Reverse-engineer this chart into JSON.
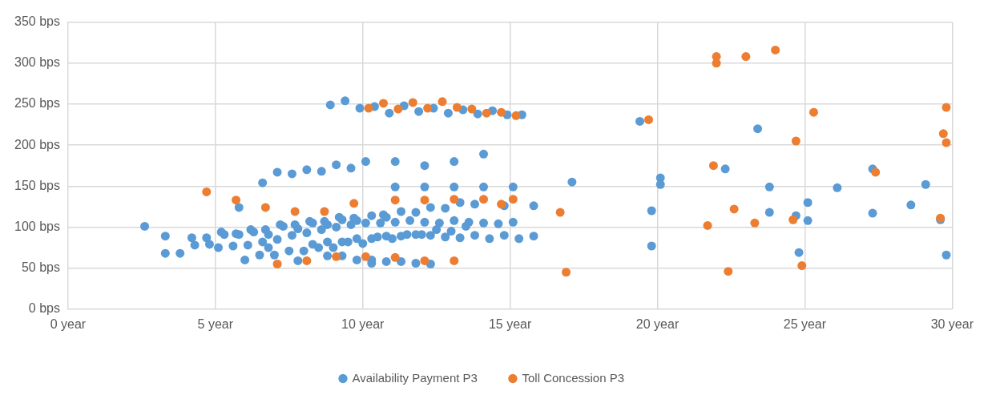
{
  "chart_data": {
    "type": "scatter",
    "marker": "circle",
    "grid": true,
    "legend": "bottom",
    "xlim": [
      0,
      30
    ],
    "xticks": [
      {
        "value": 0,
        "label": "0 year"
      },
      {
        "value": 5,
        "label": "5 year"
      },
      {
        "value": 10,
        "label": "10 year"
      },
      {
        "value": 15,
        "label": "15 year"
      },
      {
        "value": 20,
        "label": "20 year"
      },
      {
        "value": 25,
        "label": "25 year"
      },
      {
        "value": 30,
        "label": "30 year"
      }
    ],
    "ylim": [
      0,
      350
    ],
    "yticks": [
      {
        "value": 0,
        "label": "0 bps"
      },
      {
        "value": 50,
        "label": "50 bps"
      },
      {
        "value": 100,
        "label": "100 bps"
      },
      {
        "value": 150,
        "label": "150 bps"
      },
      {
        "value": 200,
        "label": "200 bps"
      },
      {
        "value": 250,
        "label": "250 bps"
      },
      {
        "value": 300,
        "label": "300 bps"
      },
      {
        "value": 350,
        "label": "350 bps"
      }
    ],
    "series": [
      {
        "name": "Availability Payment P3",
        "color": "#5b9bd5",
        "x": [
          8.9,
          9.4,
          9.9,
          6.6,
          7.1,
          7.6,
          8.1,
          8.6,
          9.1,
          9.6,
          10.1,
          5.8,
          2.6,
          3.3,
          3.3,
          3.8,
          4.2,
          4.3,
          4.7,
          4.8,
          5.1,
          5.2,
          5.3,
          5.6,
          5.7,
          5.8,
          6.0,
          6.1,
          6.2,
          6.3,
          6.5,
          6.6,
          6.7,
          6.8,
          6.8,
          7.0,
          7.1,
          7.2,
          7.3,
          7.5,
          7.6,
          7.7,
          7.8,
          7.8,
          8.0,
          8.1,
          8.2,
          8.3,
          8.3,
          8.5,
          8.6,
          8.7,
          8.8,
          8.8,
          8.8,
          9.0,
          9.1,
          9.2,
          9.3,
          9.3,
          9.3,
          9.5,
          9.6,
          9.7,
          9.8,
          9.8,
          9.8,
          10.1,
          10.3,
          10.3,
          10.3,
          10.3,
          10.4,
          10.9,
          11.4,
          11.9,
          12.4,
          12.9,
          13.4,
          13.9,
          14.4,
          14.9,
          15.4,
          11.1,
          12.1,
          13.1,
          14.1,
          11.1,
          12.1,
          13.1,
          14.1,
          15.1,
          17.1,
          13.3,
          13.8,
          14.8,
          15.8,
          12.3,
          12.8,
          11.3,
          11.8,
          10.7,
          10.8,
          10.6,
          11.1,
          11.6,
          12.1,
          12.6,
          13.1,
          13.5,
          13.6,
          14.1,
          14.6,
          15.1,
          12.5,
          13.0,
          10.0,
          10.5,
          10.8,
          11.0,
          11.3,
          11.5,
          11.8,
          12.0,
          12.3,
          12.8,
          13.3,
          13.8,
          14.3,
          14.8,
          15.3,
          15.8,
          10.8,
          11.3,
          11.8,
          12.3,
          19.4,
          23.4,
          20.1,
          20.1,
          19.8,
          19.8,
          22.3,
          23.8,
          23.8,
          24.7,
          25.1,
          25.1,
          24.8,
          26.1,
          27.3,
          27.3,
          28.6,
          29.1,
          29.6,
          29.8
        ],
        "values": [
          249,
          254,
          245,
          154,
          167,
          165,
          170,
          168,
          176,
          172,
          180,
          124,
          101,
          89,
          68,
          68,
          87,
          78,
          87,
          79,
          75,
          94,
          91,
          77,
          92,
          91,
          60,
          78,
          97,
          94,
          66,
          82,
          97,
          75,
          91,
          66,
          85,
          103,
          101,
          71,
          90,
          103,
          98,
          59,
          71,
          93,
          107,
          105,
          79,
          75,
          97,
          107,
          103,
          82,
          65,
          75,
          100,
          112,
          109,
          82,
          65,
          82,
          103,
          111,
          108,
          86,
          60,
          105,
          114,
          86,
          60,
          56,
          247,
          239,
          248,
          241,
          245,
          239,
          243,
          238,
          242,
          237,
          237,
          180,
          175,
          180,
          189,
          149,
          149,
          149,
          149,
          149,
          155,
          130,
          128,
          126,
          126,
          124,
          123,
          119,
          118,
          115,
          112,
          105,
          106,
          108,
          106,
          105,
          108,
          101,
          106,
          105,
          104,
          106,
          97,
          95,
          80,
          88,
          89,
          86,
          89,
          91,
          91,
          91,
          90,
          88,
          87,
          90,
          86,
          90,
          86,
          89,
          58,
          58,
          56,
          55,
          229,
          220,
          160,
          152,
          120,
          77,
          171,
          149,
          118,
          114,
          130,
          108,
          69,
          148,
          171,
          117,
          127,
          152,
          109,
          66
        ]
      },
      {
        "name": "Toll Concession P3",
        "color": "#ed7d31",
        "x": [
          10.2,
          4.7,
          5.7,
          6.7,
          7.7,
          8.7,
          9.7,
          7.1,
          8.1,
          9.1,
          10.1,
          10.7,
          11.2,
          11.7,
          12.2,
          12.7,
          13.2,
          13.7,
          14.2,
          14.7,
          15.2,
          11.1,
          12.1,
          13.1,
          14.1,
          14.7,
          15.1,
          16.7,
          11.1,
          12.1,
          13.1,
          16.9,
          19.7,
          22.0,
          22.0,
          23.0,
          24.0,
          25.3,
          24.7,
          29.8,
          29.7,
          29.8,
          21.9,
          27.4,
          22.6,
          21.7,
          23.3,
          24.6,
          29.6,
          24.9,
          22.4
        ],
        "values": [
          245,
          143,
          133,
          124,
          119,
          119,
          129,
          55,
          59,
          64,
          64,
          251,
          244,
          252,
          245,
          253,
          246,
          244,
          239,
          240,
          236,
          133,
          133,
          134,
          134,
          128,
          134,
          118,
          63,
          59,
          59,
          45,
          231,
          308,
          300,
          308,
          316,
          240,
          205,
          246,
          214,
          203,
          175,
          167,
          122,
          102,
          105,
          109,
          111,
          53,
          46
        ]
      }
    ]
  }
}
